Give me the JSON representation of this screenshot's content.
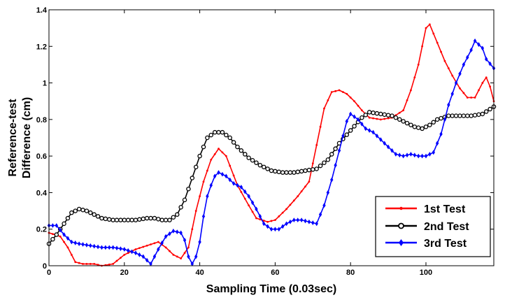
{
  "chart_data": {
    "type": "line",
    "xlabel": "Sampling Time (0.03sec)",
    "ylabel_lines": [
      "Reference-test",
      "Difference (cm)"
    ],
    "xlim": [
      0,
      118
    ],
    "ylim": [
      0,
      1.4
    ],
    "xticks": [
      0,
      20,
      40,
      60,
      80,
      100
    ],
    "xtick_labels": [
      "0",
      "20",
      "40",
      "60",
      "80",
      "100"
    ],
    "yticks": [
      0,
      0.2,
      0.4,
      0.6,
      0.8,
      1,
      1.2,
      1.4
    ],
    "ytick_labels": [
      "0",
      "0.2",
      "0.4",
      "0.6",
      "0.8",
      "1",
      "1.2",
      "1.4"
    ],
    "legend_position": "bottom-right",
    "series": [
      {
        "name": "1st Test",
        "color": "#ff0000",
        "marker": "dot",
        "points": [
          [
            0,
            0.18
          ],
          [
            3,
            0.16
          ],
          [
            5,
            0.1
          ],
          [
            7,
            0.02
          ],
          [
            9,
            0.01
          ],
          [
            12,
            0.01
          ],
          [
            14,
            0
          ],
          [
            17,
            0.01
          ],
          [
            20,
            0.06
          ],
          [
            23,
            0.09
          ],
          [
            26,
            0.11
          ],
          [
            29,
            0.13
          ],
          [
            31,
            0.1
          ],
          [
            33,
            0.06
          ],
          [
            35,
            0.04
          ],
          [
            37,
            0.1
          ],
          [
            39,
            0.3
          ],
          [
            41,
            0.46
          ],
          [
            43,
            0.58
          ],
          [
            45,
            0.64
          ],
          [
            47,
            0.6
          ],
          [
            50,
            0.44
          ],
          [
            53,
            0.33
          ],
          [
            55,
            0.26
          ],
          [
            58,
            0.24
          ],
          [
            60,
            0.25
          ],
          [
            63,
            0.31
          ],
          [
            66,
            0.38
          ],
          [
            69,
            0.46
          ],
          [
            71,
            0.66
          ],
          [
            73,
            0.86
          ],
          [
            75,
            0.95
          ],
          [
            77,
            0.96
          ],
          [
            79,
            0.94
          ],
          [
            81,
            0.9
          ],
          [
            83,
            0.85
          ],
          [
            85,
            0.81
          ],
          [
            88,
            0.8
          ],
          [
            91,
            0.81
          ],
          [
            94,
            0.85
          ],
          [
            96,
            0.96
          ],
          [
            98,
            1.1
          ],
          [
            100,
            1.3
          ],
          [
            101,
            1.32
          ],
          [
            103,
            1.22
          ],
          [
            105,
            1.12
          ],
          [
            107,
            1.04
          ],
          [
            109,
            0.97
          ],
          [
            111,
            0.92
          ],
          [
            113,
            0.92
          ],
          [
            115,
            1.0
          ],
          [
            116,
            1.03
          ],
          [
            117,
            0.98
          ],
          [
            118,
            0.9
          ]
        ]
      },
      {
        "name": "2nd Test",
        "color": "#000000",
        "marker": "circle",
        "points": [
          [
            0,
            0.12
          ],
          [
            2,
            0.17
          ],
          [
            4,
            0.23
          ],
          [
            6,
            0.29
          ],
          [
            8,
            0.31
          ],
          [
            10,
            0.3
          ],
          [
            12,
            0.28
          ],
          [
            14,
            0.26
          ],
          [
            17,
            0.25
          ],
          [
            20,
            0.25
          ],
          [
            23,
            0.25
          ],
          [
            26,
            0.26
          ],
          [
            28,
            0.26
          ],
          [
            30,
            0.25
          ],
          [
            32,
            0.25
          ],
          [
            34,
            0.28
          ],
          [
            36,
            0.36
          ],
          [
            38,
            0.48
          ],
          [
            40,
            0.6
          ],
          [
            42,
            0.7
          ],
          [
            44,
            0.73
          ],
          [
            46,
            0.73
          ],
          [
            48,
            0.7
          ],
          [
            50,
            0.65
          ],
          [
            53,
            0.59
          ],
          [
            56,
            0.55
          ],
          [
            59,
            0.52
          ],
          [
            62,
            0.51
          ],
          [
            65,
            0.51
          ],
          [
            68,
            0.52
          ],
          [
            71,
            0.53
          ],
          [
            74,
            0.58
          ],
          [
            77,
            0.67
          ],
          [
            80,
            0.74
          ],
          [
            83,
            0.81
          ],
          [
            85,
            0.84
          ],
          [
            88,
            0.83
          ],
          [
            91,
            0.82
          ],
          [
            94,
            0.79
          ],
          [
            97,
            0.76
          ],
          [
            99,
            0.75
          ],
          [
            101,
            0.77
          ],
          [
            103,
            0.8
          ],
          [
            106,
            0.82
          ],
          [
            109,
            0.82
          ],
          [
            112,
            0.82
          ],
          [
            115,
            0.83
          ],
          [
            118,
            0.87
          ]
        ]
      },
      {
        "name": "3rd Test",
        "color": "#0000ff",
        "marker": "diamond",
        "points": [
          [
            0,
            0.22
          ],
          [
            2,
            0.22
          ],
          [
            4,
            0.17
          ],
          [
            6,
            0.13
          ],
          [
            8,
            0.12
          ],
          [
            11,
            0.11
          ],
          [
            14,
            0.1
          ],
          [
            17,
            0.1
          ],
          [
            20,
            0.09
          ],
          [
            23,
            0.07
          ],
          [
            25,
            0.05
          ],
          [
            27,
            0.01
          ],
          [
            29,
            0.09
          ],
          [
            31,
            0.16
          ],
          [
            33,
            0.19
          ],
          [
            35,
            0.18
          ],
          [
            36,
            0.14
          ],
          [
            37,
            0.05
          ],
          [
            38,
            0.01
          ],
          [
            39,
            0.05
          ],
          [
            40,
            0.13
          ],
          [
            41,
            0.27
          ],
          [
            42,
            0.38
          ],
          [
            43,
            0.44
          ],
          [
            44,
            0.49
          ],
          [
            45,
            0.51
          ],
          [
            47,
            0.49
          ],
          [
            49,
            0.45
          ],
          [
            51,
            0.43
          ],
          [
            53,
            0.38
          ],
          [
            55,
            0.31
          ],
          [
            57,
            0.23
          ],
          [
            59,
            0.2
          ],
          [
            61,
            0.2
          ],
          [
            63,
            0.23
          ],
          [
            65,
            0.25
          ],
          [
            67,
            0.25
          ],
          [
            69,
            0.24
          ],
          [
            71,
            0.23
          ],
          [
            73,
            0.33
          ],
          [
            75,
            0.47
          ],
          [
            77,
            0.63
          ],
          [
            79,
            0.79
          ],
          [
            80,
            0.83
          ],
          [
            82,
            0.8
          ],
          [
            84,
            0.75
          ],
          [
            86,
            0.73
          ],
          [
            88,
            0.69
          ],
          [
            90,
            0.65
          ],
          [
            92,
            0.61
          ],
          [
            94,
            0.6
          ],
          [
            96,
            0.61
          ],
          [
            98,
            0.6
          ],
          [
            100,
            0.6
          ],
          [
            102,
            0.62
          ],
          [
            104,
            0.72
          ],
          [
            106,
            0.88
          ],
          [
            108,
            1.0
          ],
          [
            110,
            1.1
          ],
          [
            112,
            1.18
          ],
          [
            113,
            1.23
          ],
          [
            115,
            1.19
          ],
          [
            116,
            1.13
          ],
          [
            118,
            1.08
          ]
        ]
      }
    ]
  }
}
